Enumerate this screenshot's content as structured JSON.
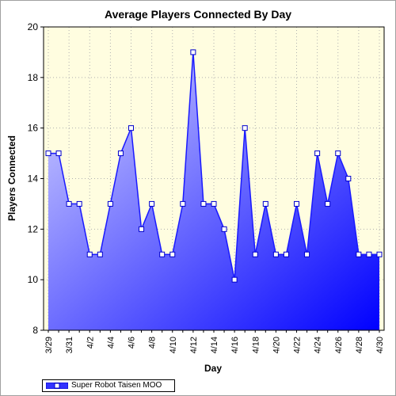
{
  "chart_data": {
    "type": "area",
    "title": "Average Players Connected By Day",
    "xlabel": "Day",
    "ylabel": "Players Connected",
    "ylim": [
      8,
      20
    ],
    "yticks": [
      8,
      10,
      12,
      14,
      16,
      18,
      20
    ],
    "x": [
      "3/29",
      "3/30",
      "3/31",
      "4/1",
      "4/2",
      "4/3",
      "4/4",
      "4/5",
      "4/6",
      "4/7",
      "4/8",
      "4/9",
      "4/10",
      "4/11",
      "4/12",
      "4/13",
      "4/14",
      "4/15",
      "4/16",
      "4/17",
      "4/18",
      "4/19",
      "4/20",
      "4/21",
      "4/22",
      "4/23",
      "4/24",
      "4/25",
      "4/26",
      "4/27",
      "4/28",
      "4/29",
      "4/30"
    ],
    "xtick_labels": [
      "3/29",
      "3/31",
      "4/2",
      "4/4",
      "4/6",
      "4/8",
      "4/10",
      "4/12",
      "4/14",
      "4/16",
      "4/18",
      "4/20",
      "4/22",
      "4/24",
      "4/26",
      "4/28",
      "4/30"
    ],
    "series": [
      {
        "name": "Super Robot Taisen MOO",
        "values": [
          15,
          15,
          13,
          13,
          11,
          11,
          13,
          15,
          16,
          12,
          13,
          11,
          11,
          13,
          19,
          13,
          13,
          12,
          10,
          16,
          11,
          13,
          11,
          11,
          13,
          11,
          15,
          13,
          15,
          14,
          11,
          11,
          11
        ]
      }
    ],
    "grid": true,
    "legend_position": "bottom-left",
    "colors": {
      "plot_background": "#fffde0",
      "line": "#1a1aff",
      "fill_light": "#d8d8ff",
      "fill_dark": "#0000ff",
      "marker_fill": "#ffffff",
      "grid": "#b0b0b0"
    }
  }
}
